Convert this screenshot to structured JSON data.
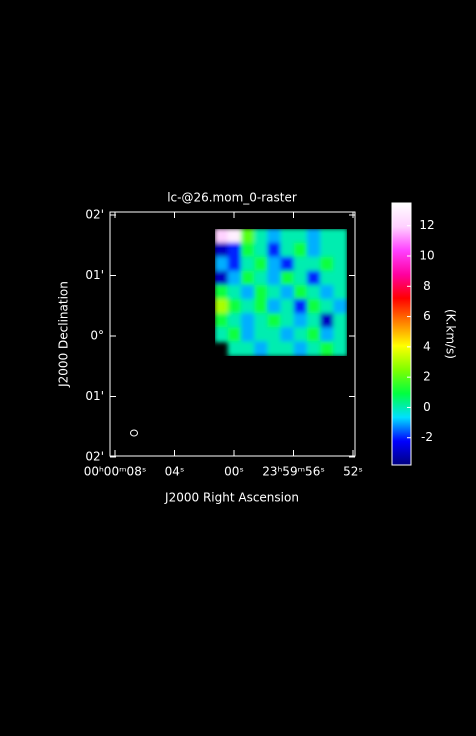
{
  "chart_data": {
    "type": "image",
    "title": "lc-@26.mom_0-raster",
    "x_label": "J2000 Right Ascension",
    "y_label": "J2000 Declination",
    "xtick_labels": [
      "00ʰ00ᵐ08ˢ",
      "04ˢ",
      "00ˢ",
      "23ʰ59ᵐ56ˢ",
      "52ˢ"
    ],
    "ytick_labels": [
      "02'",
      "01'",
      "0°",
      "01'",
      "02'"
    ],
    "colorbar_label": "(K.km/s)",
    "clim": [
      -3.8,
      13.5
    ],
    "cticks": [
      -2,
      0,
      2,
      4,
      6,
      8,
      10,
      12
    ],
    "colormap": [
      "#000080",
      "#0000ff",
      "#00e0ff",
      "#00ff40",
      "#80ff00",
      "#ffff00",
      "#ff8000",
      "#ff0000",
      "#ff00a0",
      "#ff40ff",
      "#ffd0ff",
      "#ffffff"
    ],
    "values": [
      [
        12,
        13,
        2,
        0,
        -1,
        0,
        0,
        -1,
        0,
        0
      ],
      [
        -3,
        -2,
        1,
        0,
        -2,
        0,
        1,
        -1,
        0,
        0
      ],
      [
        -1,
        -2,
        0,
        1,
        -1,
        -2,
        0,
        0,
        1,
        0
      ],
      [
        -3,
        -1,
        1,
        0,
        -1,
        1,
        0,
        -2,
        0,
        0
      ],
      [
        1,
        0,
        -1,
        1,
        0,
        -1,
        1,
        0,
        -1,
        0
      ],
      [
        3,
        1,
        0,
        1,
        -1,
        0,
        -2,
        1,
        0,
        -1
      ],
      [
        1,
        0,
        -1,
        0,
        1,
        0,
        -1,
        0,
        -3,
        0
      ],
      [
        0,
        1,
        -1,
        0,
        0,
        -1,
        0,
        1,
        -1,
        0
      ],
      [
        null,
        0,
        0,
        -1,
        0,
        0,
        -1,
        0,
        1,
        0
      ]
    ]
  }
}
